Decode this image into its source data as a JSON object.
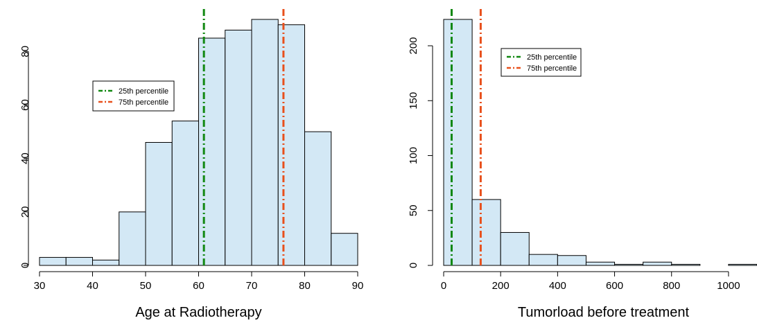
{
  "colors": {
    "bar_fill": "#d3e8f5",
    "bar_stroke": "#000000",
    "p25_line": "#118811",
    "p75_line": "#e8501c"
  },
  "legend_entries": [
    "25th percentile",
    "75th percentile"
  ],
  "chart_data": [
    {
      "type": "bar",
      "subtype": "histogram",
      "title": "",
      "xlabel": "Age at Radiotherapy",
      "ylabel": "",
      "bin_edges": [
        30,
        35,
        40,
        45,
        50,
        55,
        60,
        65,
        70,
        75,
        80,
        85,
        90
      ],
      "values": [
        3,
        3,
        2,
        20,
        46,
        54,
        85,
        88,
        92,
        90,
        50,
        12
      ],
      "xlim": [
        30,
        90
      ],
      "ylim": [
        0,
        92
      ],
      "xticks": [
        30,
        40,
        50,
        60,
        70,
        80,
        90
      ],
      "yticks": [
        0,
        20,
        40,
        60,
        80
      ],
      "reference_lines": [
        {
          "label": "25th percentile",
          "x": 61,
          "color": "#118811"
        },
        {
          "label": "75th percentile",
          "x": 76,
          "color": "#e8501c"
        }
      ],
      "legend_position": "upper-left",
      "grid": false
    },
    {
      "type": "bar",
      "subtype": "histogram",
      "title": "",
      "xlabel": "Tumorload before treatment",
      "ylabel": "",
      "bin_edges": [
        0,
        100,
        200,
        300,
        400,
        500,
        600,
        700,
        800,
        900,
        1000,
        1100
      ],
      "values": [
        224,
        60,
        30,
        10,
        9,
        3,
        1,
        3,
        1,
        0,
        1
      ],
      "xlim": [
        0,
        1100
      ],
      "ylim": [
        0,
        224
      ],
      "xticks": [
        0,
        200,
        400,
        600,
        800,
        1000
      ],
      "yticks": [
        0,
        50,
        100,
        150,
        200
      ],
      "reference_lines": [
        {
          "label": "25th percentile",
          "x": 28,
          "color": "#118811"
        },
        {
          "label": "75th percentile",
          "x": 130,
          "color": "#e8501c"
        }
      ],
      "legend_position": "top-center",
      "grid": false
    }
  ]
}
